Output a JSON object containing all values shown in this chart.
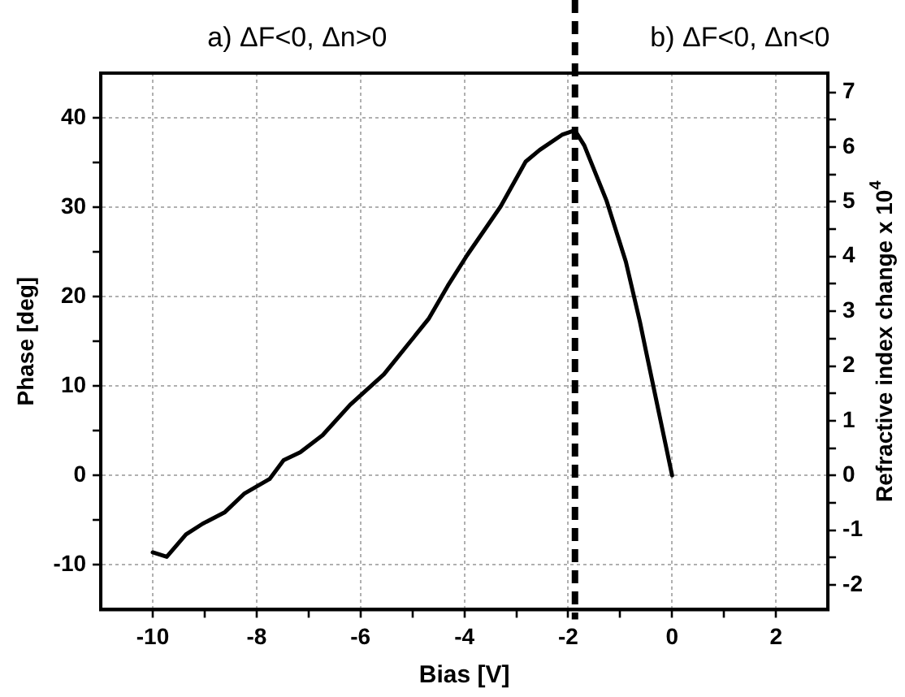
{
  "chart_data": {
    "type": "line",
    "xlabel": "Bias [V]",
    "ylabel": "Phase [deg]",
    "y2label": "Refractive index change x 10$^{4}$",
    "annotations": [
      "a) ΔF<0, Δn>0",
      "b) ΔF<0, Δn<0"
    ],
    "series": [
      {
        "color": "#000000",
        "x": [
          -10,
          -9.73,
          -9.36,
          -9.04,
          -8.61,
          -8.23,
          -7.75,
          -7.48,
          -7.16,
          -6.73,
          -6.2,
          -5.55,
          -5.12,
          -4.69,
          -4.32,
          -3.95,
          -3.3,
          -2.82,
          -2.55,
          -2.12,
          -1.87,
          -1.69,
          -1.26,
          -0.89,
          -0.62,
          -0.51,
          0
        ],
        "values": [
          -8.6,
          -9.1,
          -6.6,
          -5.4,
          -4.1,
          -2.0,
          -0.4,
          1.7,
          2.6,
          4.5,
          7.9,
          11.3,
          14.4,
          17.5,
          21.2,
          24.6,
          30.1,
          35.1,
          36.4,
          38.1,
          38.6,
          36.9,
          30.7,
          23.9,
          17.2,
          14.1,
          0
        ]
      }
    ],
    "xlim": [
      -11,
      3
    ],
    "xticks": [
      -10,
      {
        "value": -9,
        "label": null
      },
      -8,
      {
        "value": -7,
        "label": null
      },
      -6,
      {
        "value": -5,
        "label": null
      },
      -4,
      {
        "value": -3,
        "label": null
      },
      -2,
      {
        "value": -1,
        "label": null
      },
      0,
      {
        "value": 1,
        "label": null
      },
      2
    ],
    "ylim": [
      -15,
      45
    ],
    "yticks": [
      -10,
      {
        "value": -5,
        "label": null
      },
      0,
      {
        "value": 5,
        "label": null
      },
      10,
      {
        "value": 15,
        "label": null
      },
      20,
      {
        "value": 25,
        "label": null
      },
      30,
      {
        "value": 35,
        "label": null
      },
      40
    ],
    "y2lim": [
      -2.45,
      7.35
    ],
    "y2ticks": [
      -2,
      {
        "value": -1.5,
        "label": null
      },
      -1,
      {
        "value": -0.5,
        "label": null
      },
      0,
      {
        "value": 0.5,
        "label": null
      },
      1,
      {
        "value": 1.5,
        "label": null
      },
      2,
      {
        "value": 2.5,
        "label": null
      },
      3,
      {
        "value": 3.5,
        "label": null
      },
      4,
      {
        "value": 4.5,
        "label": null
      },
      5,
      {
        "value": 5.5,
        "label": null
      },
      6,
      {
        "value": 6.5,
        "label": null
      },
      7
    ],
    "ref_lines": [
      {
        "axis": "x",
        "value": -1.87,
        "color": "#000000",
        "line_style": "dashed"
      }
    ],
    "grid": true,
    "marker": "none",
    "line_style": "solid"
  }
}
